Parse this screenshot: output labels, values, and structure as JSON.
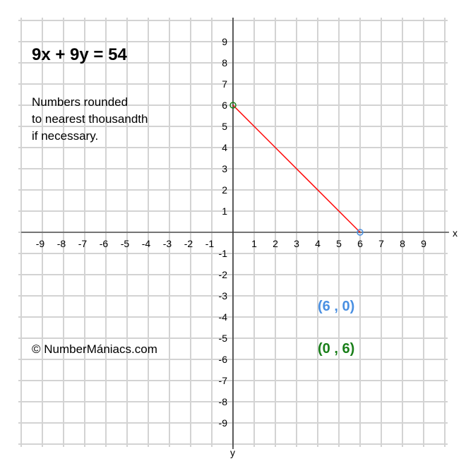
{
  "title": "9x + 9y = 54",
  "note_lines": [
    "Numbers rounded",
    "to nearest thousandth",
    "if necessary."
  ],
  "copyright": "© NumberMániacs.com",
  "chart_data": {
    "type": "line",
    "title": "9x + 9y = 54",
    "xlabel": "x",
    "ylabel": "y",
    "xlim": [
      -10,
      10
    ],
    "ylim": [
      -10,
      10
    ],
    "grid": true,
    "x_ticks": [
      -9,
      -8,
      -7,
      -6,
      -5,
      -4,
      -3,
      -2,
      -1,
      1,
      2,
      3,
      4,
      5,
      6,
      7,
      8,
      9
    ],
    "y_ticks": [
      -9,
      -8,
      -7,
      -6,
      -5,
      -4,
      -3,
      -2,
      -1,
      1,
      2,
      3,
      4,
      5,
      6,
      7,
      8,
      9
    ],
    "segment": {
      "from": [
        0,
        6
      ],
      "to": [
        6,
        0
      ],
      "color": "#ff0000"
    },
    "points": [
      {
        "x": 6,
        "y": 0,
        "label": "(6 , 0)",
        "color": "#4a90e2"
      },
      {
        "x": 0,
        "y": 6,
        "label": "(0 , 6)",
        "color": "#1a7f1a"
      }
    ]
  }
}
